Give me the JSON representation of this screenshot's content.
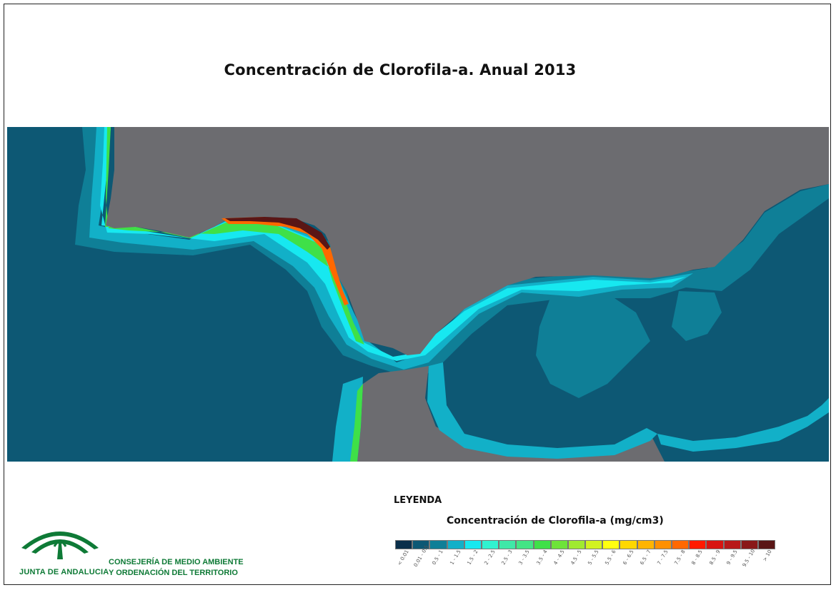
{
  "title": "Concentración de Clorofila-a. Anual 2013",
  "legend": {
    "heading": "LEYENDA",
    "subtitle": "Concentración de Clorofila-a (mg/cm3)",
    "classes": [
      {
        "label": "< 0.01",
        "color": "#0a2f4a"
      },
      {
        "label": "0.01 - 0.5",
        "color": "#0d5874"
      },
      {
        "label": "0.5 - 1",
        "color": "#0f7f97"
      },
      {
        "label": "1 - 1.5",
        "color": "#12b0c8"
      },
      {
        "label": "1.5 - 2",
        "color": "#17e8f0"
      },
      {
        "label": "2 - 2.5",
        "color": "#30f2d0"
      },
      {
        "label": "2.5 - 3",
        "color": "#3fe8a8"
      },
      {
        "label": "3 - 3.5",
        "color": "#43e585"
      },
      {
        "label": "3.5 - 4",
        "color": "#3fe048"
      },
      {
        "label": "4 - 4.5",
        "color": "#6ee33a"
      },
      {
        "label": "4.5 - 5",
        "color": "#a0ea30"
      },
      {
        "label": "5 - 5.5",
        "color": "#d2f220"
      },
      {
        "label": "5.5 - 6",
        "color": "#ffff10"
      },
      {
        "label": "6 - 6.5",
        "color": "#ffd800"
      },
      {
        "label": "6.5 - 7",
        "color": "#ffb400"
      },
      {
        "label": "7 - 7.5",
        "color": "#ff9000"
      },
      {
        "label": "7.5 - 8",
        "color": "#ff6800"
      },
      {
        "label": "8 - 8.5",
        "color": "#ff1a00"
      },
      {
        "label": "8.5 - 9",
        "color": "#d81410"
      },
      {
        "label": "9 - 9.5",
        "color": "#b81818"
      },
      {
        "label": "9.5 - 10",
        "color": "#8a1818"
      },
      {
        "label": "> 10",
        "color": "#5a1616"
      }
    ]
  },
  "map": {
    "land_color": "#6c6c70",
    "sea_color": "#0d5874"
  },
  "organization": {
    "left_name": "JUNTA DE ANDALUCIA",
    "right_line1": "CONSEJERÍA DE MEDIO AMBIENTE",
    "right_line2": "Y ORDENACIÓN DEL TERRITORIO",
    "color": "#0e7a36"
  }
}
